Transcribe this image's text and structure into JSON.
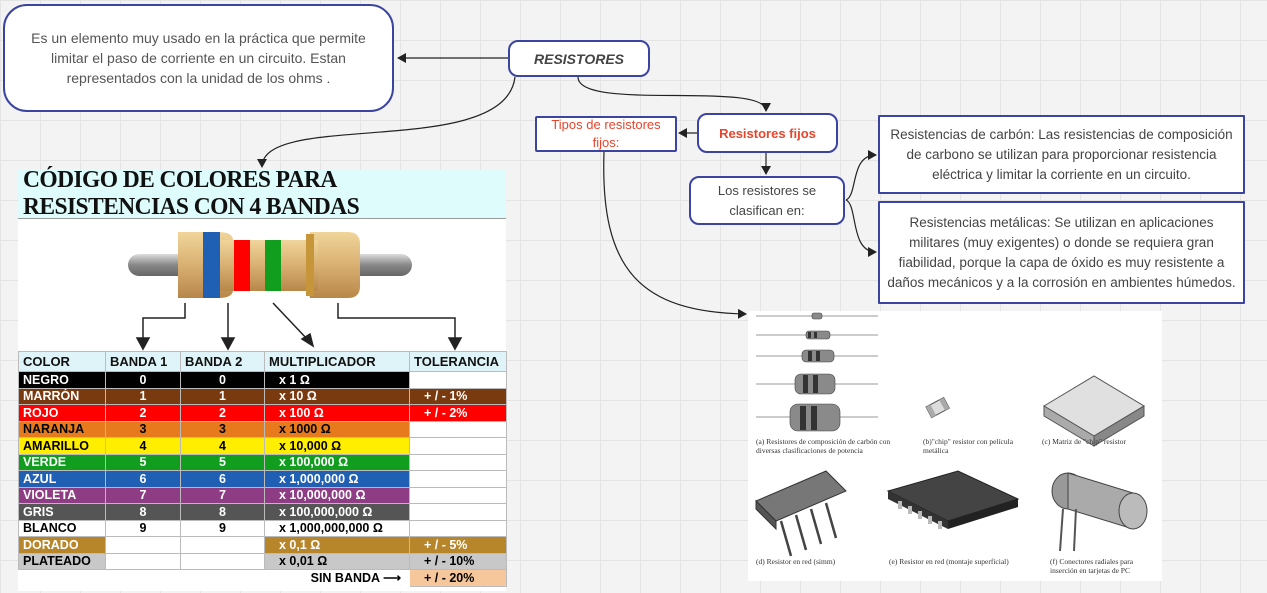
{
  "nodes": {
    "definition": "Es un elemento muy usado en la práctica que permite limitar el paso de corriente en un circuito. Estan representados con la unidad de los ohms .",
    "root": "RESISTORES",
    "tipos": "Tipos de resistores fijos:",
    "fijos": "Resistores fijos",
    "clasifican": "Los resistores se clasifican en:",
    "carbon": "Resistencias de carbón: Las resistencias de composición de carbono se utilizan para proporcionar resistencia eléctrica y limitar la corriente en un circuito.",
    "metalicas": "Resistencias metálicas: Se utilizan en aplicaciones militares (muy exigentes) o donde se requiera gran fiabilidad, porque la capa de óxido es muy resistente a daños mecánicos y a la corrosión en ambientes húmedos."
  },
  "color_code": {
    "title": "CÓDIGO DE COLORES PARA RESISTENCIAS CON 4 BANDAS",
    "headers": [
      "COLOR",
      "BANDA 1",
      "BANDA 2",
      "MULTIPLICADOR",
      "TOLERANCIA"
    ],
    "rows": [
      {
        "color": "NEGRO",
        "b1": "0",
        "b2": "0",
        "mult": "x 1 Ω",
        "tol": "",
        "bg": "#000000",
        "fg": "#ffffff"
      },
      {
        "color": "MARRÓN",
        "b1": "1",
        "b2": "1",
        "mult": "x 10 Ω",
        "tol": "+ / -    1%",
        "bg": "#7a3a10",
        "fg": "#ffffff"
      },
      {
        "color": "ROJO",
        "b1": "2",
        "b2": "2",
        "mult": "x 100 Ω",
        "tol": "+ / -    2%",
        "bg": "#ff0000",
        "fg": "#ffffff"
      },
      {
        "color": "NARANJA",
        "b1": "3",
        "b2": "3",
        "mult": "x 1000 Ω",
        "tol": "",
        "bg": "#e87a1e",
        "fg": "#000000"
      },
      {
        "color": "AMARILLO",
        "b1": "4",
        "b2": "4",
        "mult": "x 10,000 Ω",
        "tol": "",
        "bg": "#ffee00",
        "fg": "#000000"
      },
      {
        "color": "VERDE",
        "b1": "5",
        "b2": "5",
        "mult": "x 100,000 Ω",
        "tol": "",
        "bg": "#119e1e",
        "fg": "#ffffff"
      },
      {
        "color": "AZUL",
        "b1": "6",
        "b2": "6",
        "mult": "x 1,000,000 Ω",
        "tol": "",
        "bg": "#1f5fb4",
        "fg": "#ffffff"
      },
      {
        "color": "VIOLETA",
        "b1": "7",
        "b2": "7",
        "mult": "x 10,000,000 Ω",
        "tol": "",
        "bg": "#8e3c84",
        "fg": "#ffffff"
      },
      {
        "color": "GRIS",
        "b1": "8",
        "b2": "8",
        "mult": "x 100,000,000 Ω",
        "tol": "",
        "bg": "#555555",
        "fg": "#ffffff"
      },
      {
        "color": "BLANCO",
        "b1": "9",
        "b2": "9",
        "mult": "x 1,000,000,000 Ω",
        "tol": "",
        "bg": "#ffffff",
        "fg": "#000000"
      },
      {
        "color": "DORADO",
        "b1": "",
        "b2": "",
        "mult": "x 0,1 Ω",
        "tol": "+ / -    5%",
        "bg": "#b8862a",
        "fg": "#ffffff"
      },
      {
        "color": "PLATEADO",
        "b1": "",
        "b2": "",
        "mult": "x 0,01 Ω",
        "tol": "+ / -    10%",
        "bg": "#c8c8c8",
        "fg": "#000000"
      }
    ],
    "no_band_label": "SIN BANDA",
    "no_band_tol": "+ / -    20%"
  },
  "photo_captions": {
    "a": "(a) Resistores de composición de carbón con diversas clasificaciones de potencia",
    "b": "(b)\"chip\" resistor con película metálica",
    "c": "(c) Matriz de \"chip\" resistor",
    "d": "(d) Resistor en red (simm)",
    "e": "(e) Resistor en red (montaje superficial)",
    "f": "(f) Conectores radiales para inserción en tarjetas de PC"
  },
  "colors": {
    "node_border": "#3b44a0",
    "accent_text": "#e8452c",
    "title_bg": "#ddfcfb"
  }
}
